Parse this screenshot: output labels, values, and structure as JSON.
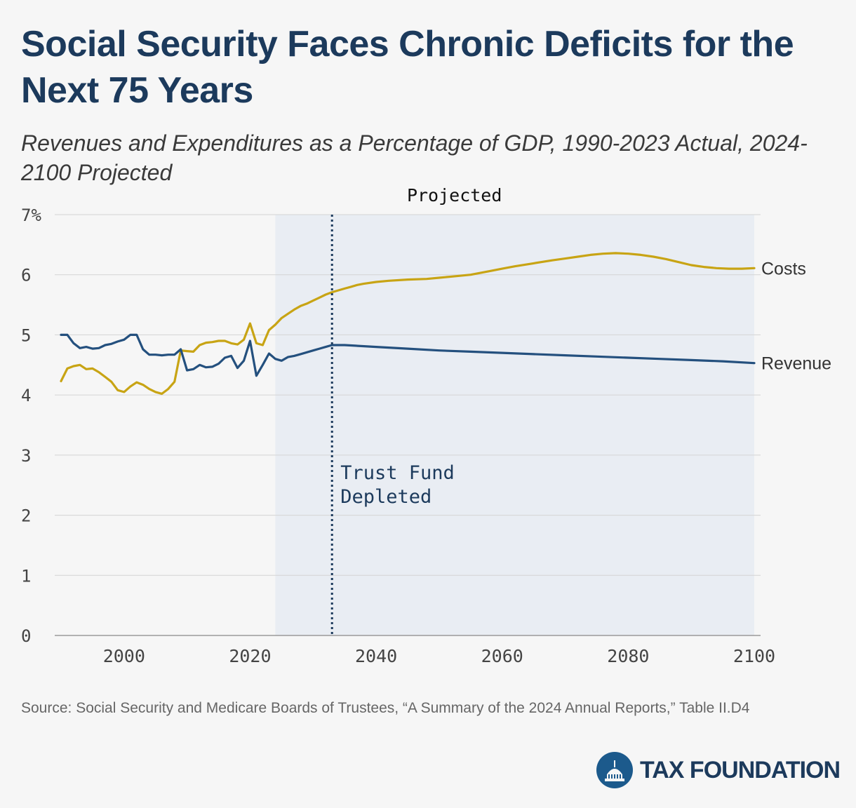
{
  "title": "Social Security Faces Chronic Deficits for the Next 75 Years",
  "subtitle": "Revenues and Expenditures as a Percentage of GDP, 1990-2023 Actual, 2024-2100 Projected",
  "source": "Source: Social Security and Medicare Boards of Trustees, “A Summary of the 2024 Annual Reports,” Table II.D4",
  "logo_text": "TAX FOUNDATION",
  "chart_data": {
    "type": "line",
    "title": "Social Security Faces Chronic Deficits for the Next 75 Years",
    "xlabel": "",
    "ylabel": "",
    "xlim": [
      1989,
      2101
    ],
    "ylim": [
      0,
      7
    ],
    "x_ticks": [
      2000,
      2020,
      2040,
      2060,
      2080,
      2100
    ],
    "y_ticks": [
      0,
      1,
      2,
      3,
      4,
      5,
      6,
      7
    ],
    "y_tick_labels": [
      "0",
      "1",
      "2",
      "3",
      "4",
      "5",
      "6",
      "7%"
    ],
    "grid": true,
    "projected_region": {
      "label": "Projected",
      "start": 2024,
      "end": 2100
    },
    "annotation": {
      "x": 2033,
      "label_lines": [
        "Trust Fund",
        "Depleted"
      ]
    },
    "series": [
      {
        "name": "Costs",
        "color": "#c8a414",
        "x": [
          1990,
          1991,
          1992,
          1993,
          1994,
          1995,
          1996,
          1997,
          1998,
          1999,
          2000,
          2001,
          2002,
          2003,
          2004,
          2005,
          2006,
          2007,
          2008,
          2009,
          2010,
          2011,
          2012,
          2013,
          2014,
          2015,
          2016,
          2017,
          2018,
          2019,
          2020,
          2021,
          2022,
          2023,
          2024,
          2025,
          2026,
          2027,
          2028,
          2029,
          2030,
          2031,
          2032,
          2033,
          2034,
          2035,
          2036,
          2037,
          2038,
          2040,
          2042,
          2045,
          2048,
          2050,
          2052,
          2055,
          2058,
          2060,
          2062,
          2065,
          2068,
          2070,
          2072,
          2074,
          2076,
          2078,
          2080,
          2082,
          2084,
          2086,
          2088,
          2090,
          2092,
          2094,
          2096,
          2098,
          2100
        ],
        "values": [
          4.23,
          4.44,
          4.48,
          4.5,
          4.43,
          4.44,
          4.38,
          4.3,
          4.22,
          4.08,
          4.05,
          4.14,
          4.21,
          4.17,
          4.1,
          4.05,
          4.02,
          4.1,
          4.22,
          4.74,
          4.73,
          4.72,
          4.83,
          4.87,
          4.88,
          4.9,
          4.9,
          4.86,
          4.84,
          4.92,
          5.19,
          4.86,
          4.83,
          5.08,
          5.17,
          5.28,
          5.35,
          5.42,
          5.48,
          5.52,
          5.57,
          5.62,
          5.67,
          5.71,
          5.74,
          5.77,
          5.8,
          5.83,
          5.85,
          5.88,
          5.9,
          5.92,
          5.93,
          5.95,
          5.97,
          6.0,
          6.06,
          6.1,
          6.14,
          6.19,
          6.24,
          6.27,
          6.3,
          6.33,
          6.35,
          6.36,
          6.35,
          6.33,
          6.3,
          6.26,
          6.21,
          6.16,
          6.13,
          6.11,
          6.1,
          6.1,
          6.11
        ]
      },
      {
        "name": "Revenue",
        "color": "#24507e",
        "x": [
          1990,
          1991,
          1992,
          1993,
          1994,
          1995,
          1996,
          1997,
          1998,
          1999,
          2000,
          2001,
          2002,
          2003,
          2004,
          2005,
          2006,
          2007,
          2008,
          2009,
          2010,
          2011,
          2012,
          2013,
          2014,
          2015,
          2016,
          2017,
          2018,
          2019,
          2020,
          2021,
          2022,
          2023,
          2024,
          2025,
          2026,
          2027,
          2028,
          2029,
          2030,
          2031,
          2032,
          2033,
          2035,
          2040,
          2045,
          2050,
          2055,
          2060,
          2065,
          2070,
          2075,
          2080,
          2085,
          2090,
          2095,
          2100
        ],
        "values": [
          5.0,
          5.0,
          4.86,
          4.78,
          4.8,
          4.77,
          4.78,
          4.83,
          4.85,
          4.89,
          4.92,
          5.0,
          5.0,
          4.76,
          4.67,
          4.67,
          4.66,
          4.67,
          4.67,
          4.76,
          4.41,
          4.43,
          4.5,
          4.46,
          4.47,
          4.52,
          4.62,
          4.65,
          4.45,
          4.57,
          4.9,
          4.32,
          4.5,
          4.69,
          4.6,
          4.57,
          4.63,
          4.65,
          4.68,
          4.71,
          4.74,
          4.77,
          4.8,
          4.83,
          4.83,
          4.8,
          4.77,
          4.74,
          4.72,
          4.7,
          4.68,
          4.66,
          4.64,
          4.62,
          4.6,
          4.58,
          4.56,
          4.53
        ]
      }
    ]
  }
}
